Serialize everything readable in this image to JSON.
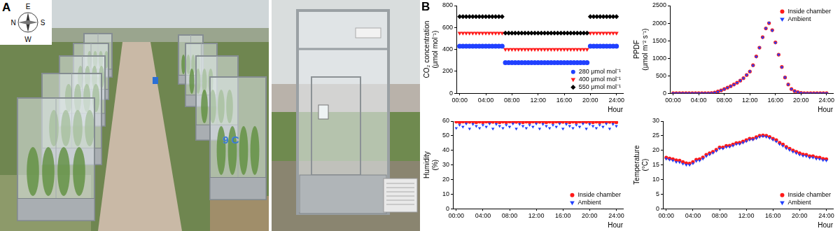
{
  "panel_a": {
    "label": "A",
    "compass": {
      "top": "E",
      "left": "N",
      "right": "S",
      "bottom": "W"
    },
    "chamber_label": "9 C"
  },
  "panel_b": {
    "label": "B"
  },
  "chart_data": [
    {
      "type": "scatter",
      "ylabel": [
        "CO₂ concentration",
        "(μmol mol⁻¹)"
      ],
      "xlabel": "Hour",
      "x": [
        0,
        0.5,
        1,
        1.5,
        2,
        2.5,
        3,
        3.5,
        4,
        4.5,
        5,
        5.5,
        6,
        6.5,
        7,
        7.5,
        8,
        8.5,
        9,
        9.5,
        10,
        10.5,
        11,
        11.5,
        12,
        12.5,
        13,
        13.5,
        14,
        14.5,
        15,
        15.5,
        16,
        16.5,
        17,
        17.5,
        18,
        18.5,
        19,
        19.5,
        20,
        20.5,
        21,
        21.5,
        22,
        22.5,
        23,
        23.5,
        24
      ],
      "xlim": [
        -0.5,
        25
      ],
      "xticks": [
        {
          "value": 0,
          "label": "00:00"
        },
        {
          "value": 4,
          "label": "04:00"
        },
        {
          "value": 8,
          "label": "08:00"
        },
        {
          "value": 12,
          "label": "12:00"
        },
        {
          "value": 16,
          "label": "16:00"
        },
        {
          "value": 20,
          "label": "20:00"
        },
        {
          "value": 24,
          "label": "24:00"
        }
      ],
      "ylim": [
        0,
        800
      ],
      "yticks": [
        0,
        200,
        400,
        600,
        800
      ],
      "grid": false,
      "legend": "lower right",
      "series": [
        {
          "name": "280 μmol mol⁻¹",
          "color": "#2040ff",
          "marker": "circle",
          "values": [
            430,
            430,
            430,
            430,
            430,
            430,
            430,
            430,
            430,
            430,
            430,
            430,
            430,
            430,
            280,
            280,
            280,
            280,
            280,
            280,
            280,
            280,
            280,
            280,
            280,
            280,
            280,
            280,
            280,
            280,
            280,
            280,
            280,
            280,
            280,
            280,
            280,
            280,
            280,
            280,
            430,
            430,
            430,
            430,
            430,
            430,
            430,
            430,
            430
          ]
        },
        {
          "name": "400 μmol mol⁻¹",
          "color": "#ff1a1a",
          "marker": "triangle_down",
          "values": [
            550,
            550,
            550,
            550,
            550,
            550,
            550,
            550,
            550,
            550,
            550,
            550,
            550,
            550,
            400,
            400,
            400,
            400,
            400,
            400,
            400,
            400,
            400,
            400,
            400,
            400,
            400,
            400,
            400,
            400,
            400,
            400,
            400,
            400,
            400,
            400,
            400,
            400,
            400,
            400,
            550,
            550,
            550,
            550,
            550,
            550,
            550,
            550,
            550
          ]
        },
        {
          "name": "550 μmol mol⁻¹",
          "color": "#000000",
          "marker": "diamond",
          "values": [
            700,
            700,
            700,
            700,
            700,
            700,
            700,
            700,
            700,
            700,
            700,
            700,
            700,
            700,
            550,
            550,
            550,
            550,
            550,
            550,
            550,
            550,
            550,
            550,
            550,
            550,
            550,
            550,
            550,
            550,
            550,
            550,
            550,
            550,
            550,
            550,
            550,
            550,
            550,
            550,
            700,
            700,
            700,
            700,
            700,
            700,
            700,
            700,
            700
          ]
        }
      ]
    },
    {
      "type": "scatter",
      "ylabel": [
        "PPDF",
        "(μmol m⁻² s⁻¹)"
      ],
      "xlabel": "Hour",
      "x": [
        0,
        0.5,
        1,
        1.5,
        2,
        2.5,
        3,
        3.5,
        4,
        4.5,
        5,
        5.5,
        6,
        6.5,
        7,
        7.5,
        8,
        8.5,
        9,
        9.5,
        10,
        10.5,
        11,
        11.5,
        12,
        12.5,
        13,
        13.5,
        14,
        14.5,
        15,
        15.5,
        16,
        16.5,
        17,
        17.5,
        18,
        18.5,
        19,
        19.5,
        20,
        20.5,
        21,
        21.5,
        22,
        22.5,
        23,
        23.5,
        24
      ],
      "xlim": [
        -0.5,
        25
      ],
      "xticks": [
        {
          "value": 0,
          "label": "00:00"
        },
        {
          "value": 4,
          "label": "04:00"
        },
        {
          "value": 8,
          "label": "08:00"
        },
        {
          "value": 12,
          "label": "12:00"
        },
        {
          "value": 16,
          "label": "16:00"
        },
        {
          "value": 20,
          "label": "20:00"
        },
        {
          "value": 24,
          "label": "24:00"
        }
      ],
      "ylim": [
        0,
        2500
      ],
      "yticks": [
        0,
        500,
        1000,
        1500,
        2000,
        2500
      ],
      "grid": false,
      "legend": "upper right",
      "series": [
        {
          "name": "Inside chamber",
          "color": "#ff1a1a",
          "marker": "circle",
          "values": [
            0,
            0,
            0,
            0,
            0,
            0,
            0,
            0,
            0,
            0,
            0,
            0,
            5,
            20,
            50,
            80,
            120,
            160,
            200,
            250,
            300,
            360,
            430,
            520,
            620,
            800,
            1050,
            1300,
            1600,
            1850,
            2000,
            1800,
            1450,
            1100,
            750,
            450,
            250,
            120,
            60,
            30,
            10,
            0,
            0,
            0,
            0,
            0,
            0,
            0,
            0
          ]
        },
        {
          "name": "Ambient",
          "color": "#2040ff",
          "marker": "triangle_down",
          "values": [
            0,
            0,
            0,
            0,
            0,
            0,
            0,
            0,
            0,
            0,
            0,
            0,
            5,
            20,
            45,
            80,
            115,
            160,
            200,
            245,
            300,
            360,
            425,
            520,
            620,
            790,
            1040,
            1300,
            1590,
            1850,
            2010,
            1790,
            1440,
            1100,
            740,
            450,
            250,
            120,
            60,
            30,
            10,
            0,
            0,
            0,
            0,
            0,
            0,
            0,
            0
          ]
        }
      ]
    },
    {
      "type": "scatter",
      "ylabel": [
        "Humidity",
        "(%)"
      ],
      "xlabel": "Hour",
      "x": [
        0,
        0.5,
        1,
        1.5,
        2,
        2.5,
        3,
        3.5,
        4,
        4.5,
        5,
        5.5,
        6,
        6.5,
        7,
        7.5,
        8,
        8.5,
        9,
        9.5,
        10,
        10.5,
        11,
        11.5,
        12,
        12.5,
        13,
        13.5,
        14,
        14.5,
        15,
        15.5,
        16,
        16.5,
        17,
        17.5,
        18,
        18.5,
        19,
        19.5,
        20,
        20.5,
        21,
        21.5,
        22,
        22.5,
        23,
        23.5,
        24
      ],
      "xlim": [
        -0.5,
        25
      ],
      "xticks": [
        {
          "value": 0,
          "label": "00:00"
        },
        {
          "value": 4,
          "label": "04:00"
        },
        {
          "value": 8,
          "label": "08:00"
        },
        {
          "value": 12,
          "label": "12:00"
        },
        {
          "value": 16,
          "label": "16:00"
        },
        {
          "value": 20,
          "label": "20:00"
        },
        {
          "value": 24,
          "label": "24:00"
        }
      ],
      "ylim": [
        0,
        60
      ],
      "yticks": [
        0,
        10,
        20,
        30,
        40,
        50,
        60
      ],
      "grid": false,
      "legend": "lower right",
      "series": [
        {
          "name": "Inside chamber",
          "color": "#ff1a1a",
          "marker": "circle",
          "values": [
            59.6,
            59.3,
            59.7,
            59.4,
            59.5,
            59.8,
            59.2,
            59.6,
            59.3,
            59.7,
            59.4,
            59.5,
            59.8,
            59.2,
            59.6,
            59.3,
            59.7,
            59.4,
            59.5,
            59.8,
            59.2,
            59.6,
            59.3,
            59.7,
            59.4,
            59.5,
            59.8,
            59.2,
            59.6,
            59.3,
            59.7,
            59.4,
            59.5,
            59.8,
            59.2,
            59.6,
            59.3,
            59.7,
            59.4,
            59.5,
            59.8,
            59.2,
            59.6,
            59.3,
            59.7,
            59.4,
            59.5,
            59.8,
            59.2
          ]
        },
        {
          "name": "Ambient",
          "color": "#2040ff",
          "marker": "triangle_down",
          "values": [
            55.2,
            57.4,
            56.1,
            58.2,
            54.8,
            57.9,
            56.6,
            55.2,
            57.4,
            56.1,
            58.2,
            54.8,
            57.9,
            56.6,
            55.2,
            57.4,
            56.1,
            58.2,
            54.8,
            57.9,
            56.6,
            55.2,
            57.4,
            56.1,
            58.2,
            54.8,
            57.9,
            56.6,
            55.2,
            57.4,
            56.1,
            58.2,
            54.8,
            57.9,
            56.6,
            55.2,
            57.4,
            56.1,
            58.2,
            54.8,
            57.9,
            56.6,
            55.2,
            57.4,
            56.1,
            58.2,
            54.8,
            57.9,
            56.6
          ]
        }
      ]
    },
    {
      "type": "scatter",
      "ylabel": [
        "Temperature",
        "(°C)"
      ],
      "xlabel": "Hour",
      "x": [
        0,
        0.5,
        1,
        1.5,
        2,
        2.5,
        3,
        3.5,
        4,
        4.5,
        5,
        5.5,
        6,
        6.5,
        7,
        7.5,
        8,
        8.5,
        9,
        9.5,
        10,
        10.5,
        11,
        11.5,
        12,
        12.5,
        13,
        13.5,
        14,
        14.5,
        15,
        15.5,
        16,
        16.5,
        17,
        17.5,
        18,
        18.5,
        19,
        19.5,
        20,
        20.5,
        21,
        21.5,
        22,
        22.5,
        23,
        23.5,
        24
      ],
      "xlim": [
        -0.5,
        25
      ],
      "xticks": [
        {
          "value": 0,
          "label": "00:00"
        },
        {
          "value": 4,
          "label": "04:00"
        },
        {
          "value": 8,
          "label": "08:00"
        },
        {
          "value": 12,
          "label": "12:00"
        },
        {
          "value": 16,
          "label": "16:00"
        },
        {
          "value": 20,
          "label": "20:00"
        },
        {
          "value": 24,
          "label": "24:00"
        }
      ],
      "ylim": [
        0,
        30
      ],
      "yticks": [
        0,
        5,
        10,
        15,
        20,
        25,
        30
      ],
      "grid": false,
      "legend": "lower right",
      "series": [
        {
          "name": "Inside chamber",
          "color": "#ff1a1a",
          "marker": "circle",
          "values": [
            17.5,
            17.2,
            17.0,
            16.6,
            16.5,
            16.0,
            15.6,
            15.5,
            16.0,
            16.8,
            17.0,
            17.6,
            18.5,
            19.0,
            19.5,
            20.2,
            21.0,
            21.0,
            21.5,
            21.6,
            22.0,
            22.5,
            22.6,
            23.0,
            23.5,
            24.0,
            24.0,
            24.5,
            25.0,
            25.1,
            25.0,
            24.6,
            24.0,
            23.5,
            22.6,
            22.0,
            21.2,
            20.6,
            20.0,
            19.5,
            19.0,
            18.6,
            18.5,
            18.0,
            18.0,
            17.6,
            17.5,
            17.1,
            17.0
          ]
        },
        {
          "name": "Ambient",
          "color": "#2040ff",
          "marker": "triangle_down",
          "values": [
            17.1,
            16.8,
            16.5,
            16.0,
            15.9,
            15.4,
            15.0,
            15.0,
            15.5,
            16.3,
            16.5,
            17.1,
            18.0,
            18.6,
            19.1,
            19.8,
            20.6,
            20.6,
            21.1,
            21.2,
            21.6,
            22.1,
            22.2,
            22.6,
            23.1,
            23.6,
            23.7,
            24.1,
            24.6,
            24.8,
            24.6,
            24.2,
            23.6,
            23.0,
            22.1,
            21.5,
            20.7,
            20.1,
            19.5,
            19.0,
            18.5,
            18.1,
            18.0,
            17.5,
            17.5,
            17.1,
            17.0,
            16.6,
            16.5
          ]
        }
      ]
    }
  ]
}
